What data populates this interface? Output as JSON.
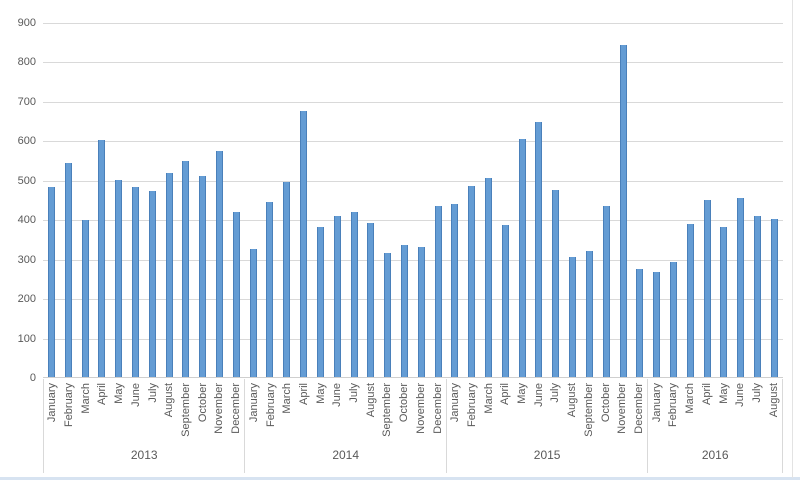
{
  "chart_data": {
    "type": "bar",
    "title": "",
    "xlabel": "",
    "ylabel": "",
    "ylim": [
      0,
      900
    ],
    "ytick_step": 100,
    "yticks": [
      0,
      100,
      200,
      300,
      400,
      500,
      600,
      700,
      800,
      900
    ],
    "grid": "horizontal",
    "legend": "none",
    "colors": {
      "bar_fill": "#649cd4",
      "bar_edge": "#4a80ba",
      "gridline": "#d9d9d9",
      "axis_text": "#595959"
    },
    "groups": [
      {
        "year": "2013",
        "months": [
          "January",
          "February",
          "March",
          "April",
          "May",
          "June",
          "July",
          "August",
          "September",
          "October",
          "November",
          "December"
        ],
        "values": [
          483,
          546,
          400,
          603,
          501,
          483,
          473,
          521,
          551,
          513,
          576,
          420
        ]
      },
      {
        "year": "2014",
        "months": [
          "January",
          "February",
          "March",
          "April",
          "May",
          "June",
          "July",
          "August",
          "September",
          "October",
          "November",
          "December"
        ],
        "values": [
          328,
          446,
          498,
          678,
          384,
          411,
          420,
          394,
          316,
          337,
          331,
          436
        ]
      },
      {
        "year": "2015",
        "months": [
          "January",
          "February",
          "March",
          "April",
          "May",
          "June",
          "July",
          "August",
          "September",
          "October",
          "November",
          "December"
        ],
        "values": [
          441,
          487,
          506,
          387,
          606,
          649,
          476,
          306,
          323,
          436,
          843,
          277
        ]
      },
      {
        "year": "2016",
        "months": [
          "January",
          "February",
          "March",
          "April",
          "May",
          "June",
          "July",
          "August"
        ],
        "values": [
          269,
          294,
          391,
          452,
          382,
          456,
          411,
          403
        ]
      }
    ]
  }
}
